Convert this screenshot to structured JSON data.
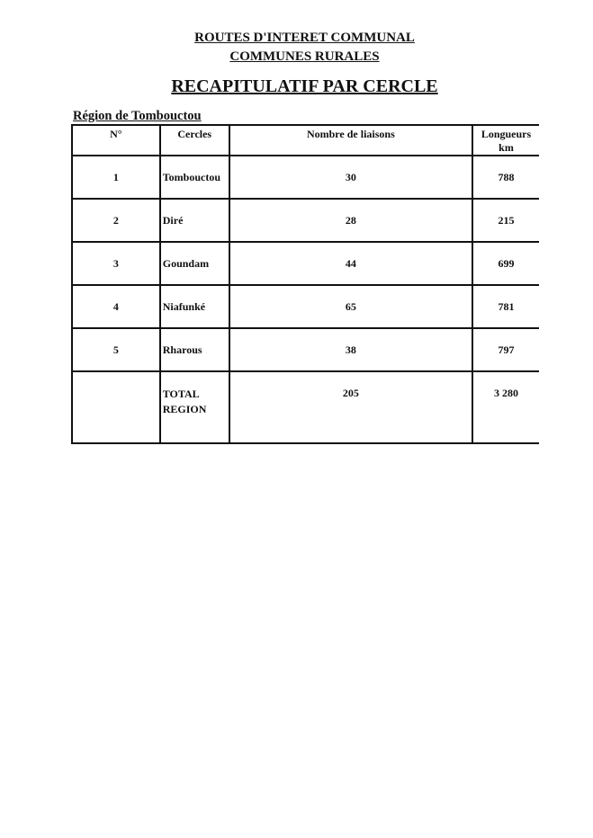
{
  "header": {
    "line1": "ROUTES D'INTERET COMMUNAL",
    "line2": "COMMUNES RURALES",
    "title": "RECAPITULATIF PAR CERCLE",
    "region": "Région de Tombouctou"
  },
  "table": {
    "columns": [
      "N°",
      "Cercles",
      "Nombre de liaisons",
      "Longueurs km"
    ],
    "col4_line1": "Longueurs",
    "col4_line2": "km",
    "rows": [
      {
        "n": "1",
        "cercle": "Tombouctou",
        "liaisons": "30",
        "longueur": "788"
      },
      {
        "n": "2",
        "cercle": "Diré",
        "liaisons": "28",
        "longueur": "215"
      },
      {
        "n": "3",
        "cercle": "Goundam",
        "liaisons": "44",
        "longueur": "699"
      },
      {
        "n": "4",
        "cercle": "Niafunké",
        "liaisons": "65",
        "longueur": "781"
      },
      {
        "n": "5",
        "cercle": "Rharous",
        "liaisons": "38",
        "longueur": "797"
      }
    ],
    "total": {
      "label_line1": "TOTAL",
      "label_line2": "REGION",
      "liaisons": "205",
      "longueur": "3 280"
    }
  }
}
